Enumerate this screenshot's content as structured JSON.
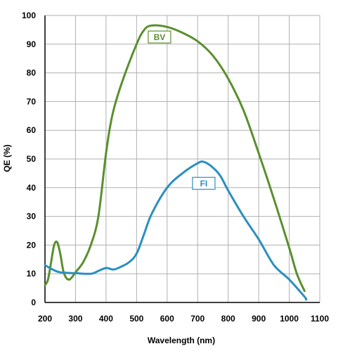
{
  "chart_data": {
    "type": "line",
    "title": "",
    "xlabel": "Wavelength (nm)",
    "ylabel": "QE (%)",
    "xlim": [
      200,
      1100
    ],
    "ylim": [
      0,
      100
    ],
    "xticks": [
      200,
      300,
      400,
      500,
      600,
      700,
      800,
      900,
      1000,
      1100
    ],
    "yticks": [
      0,
      10,
      20,
      30,
      40,
      50,
      60,
      70,
      80,
      90,
      100
    ],
    "grid": true,
    "legend": "inline labels on curves",
    "series": [
      {
        "name": "BV",
        "color": "#5a8f2e",
        "points": [
          [
            200,
            6
          ],
          [
            210,
            8
          ],
          [
            220,
            14
          ],
          [
            230,
            20
          ],
          [
            240,
            21
          ],
          [
            250,
            17
          ],
          [
            260,
            11
          ],
          [
            270,
            8.5
          ],
          [
            280,
            8
          ],
          [
            290,
            9
          ],
          [
            300,
            10.5
          ],
          [
            325,
            14
          ],
          [
            350,
            20
          ],
          [
            375,
            30
          ],
          [
            400,
            52
          ],
          [
            420,
            65
          ],
          [
            450,
            76
          ],
          [
            500,
            90
          ],
          [
            525,
            95
          ],
          [
            550,
            96.5
          ],
          [
            600,
            96
          ],
          [
            650,
            94
          ],
          [
            700,
            91
          ],
          [
            750,
            86
          ],
          [
            800,
            78
          ],
          [
            850,
            67
          ],
          [
            900,
            52
          ],
          [
            950,
            36
          ],
          [
            1000,
            19
          ],
          [
            1025,
            10
          ],
          [
            1050,
            4
          ]
        ]
      },
      {
        "name": "FI",
        "color": "#2a8fc0",
        "points": [
          [
            200,
            13
          ],
          [
            225,
            11.5
          ],
          [
            250,
            10.5
          ],
          [
            300,
            10.2
          ],
          [
            350,
            10
          ],
          [
            375,
            11
          ],
          [
            400,
            12
          ],
          [
            425,
            11.5
          ],
          [
            450,
            12.5
          ],
          [
            475,
            14
          ],
          [
            500,
            17
          ],
          [
            525,
            24
          ],
          [
            550,
            31
          ],
          [
            600,
            40
          ],
          [
            650,
            45
          ],
          [
            700,
            48.5
          ],
          [
            720,
            49
          ],
          [
            750,
            47
          ],
          [
            775,
            44
          ],
          [
            800,
            39
          ],
          [
            850,
            30
          ],
          [
            900,
            22
          ],
          [
            950,
            13
          ],
          [
            1000,
            8
          ],
          [
            1050,
            2
          ],
          [
            1055,
            1
          ]
        ]
      }
    ]
  },
  "colors": {
    "bv": "#5a8f2e",
    "fi": "#2a8fc0",
    "grid": "#b0b0b0",
    "axis": "#000000"
  }
}
